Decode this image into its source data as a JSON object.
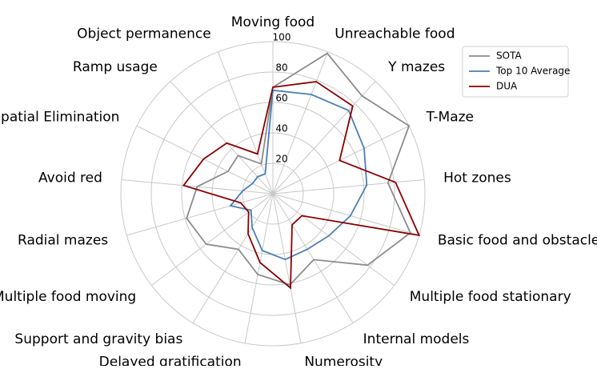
{
  "chart_data": {
    "type": "radar",
    "categories": [
      "Moving food",
      "Unreachable food",
      "Y mazes",
      "T-Maze",
      "Hot zones",
      "Basic food and obstacles",
      "Multiple food stationary",
      "Internal models",
      "Numerosity",
      "Delayed gratification",
      "Support and gravity bias",
      "Multiple food moving",
      "Radial mazes",
      "Avoid red",
      "Spatial Elimination",
      "Ramp usage",
      "Object permanence"
    ],
    "series": [
      {
        "name": "SOTA",
        "color": "#8c8c8c",
        "values": [
          70,
          99,
          87,
          100,
          76,
          94,
          78,
          51,
          61,
          54,
          43,
          55,
          59,
          50,
          33,
          34,
          21
        ]
      },
      {
        "name": "Top 10 Average",
        "color": "#4a7fb5",
        "values": [
          68,
          70,
          74,
          67,
          62,
          53,
          46,
          43,
          44,
          38,
          26,
          18,
          29,
          20,
          15,
          15,
          14
        ]
      },
      {
        "name": "DUA",
        "color": "#8b0000",
        "values": [
          70,
          79,
          78,
          49,
          81,
          100,
          24,
          24,
          63,
          46,
          31,
          20,
          22,
          59,
          51,
          45,
          28
        ]
      }
    ],
    "ylim": [
      0,
      100
    ],
    "yticks": [
      20,
      40,
      60,
      80,
      100
    ],
    "grid": true,
    "legend": "upper right"
  }
}
